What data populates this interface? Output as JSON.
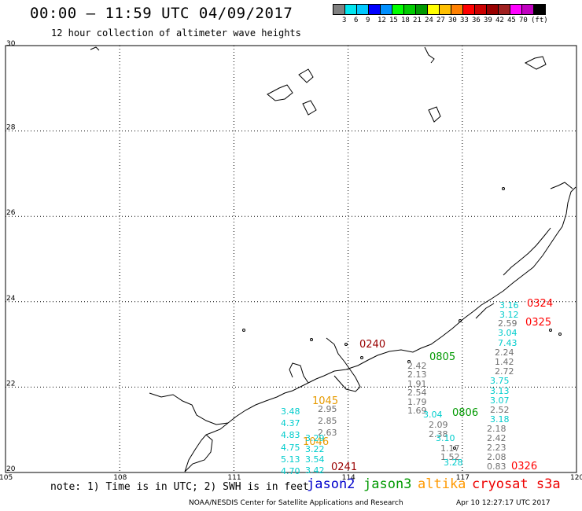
{
  "header": {
    "title": "00:00 — 11:59 UTC 04/09/2017",
    "subtitle": "12 hour collection of altimeter wave heights"
  },
  "legend": {
    "colors": [
      "#808080",
      "#00e5ee",
      "#00c8ff",
      "#0000ff",
      "#0090ff",
      "#00ff00",
      "#00cc00",
      "#009900",
      "#ffff00",
      "#ffc000",
      "#ff8000",
      "#ff0000",
      "#cc0000",
      "#990000",
      "#a02020",
      "#ff00ff",
      "#c000c0",
      "#000000"
    ],
    "labels": [
      "3",
      "6",
      "9",
      "12",
      "15",
      "18",
      "21",
      "24",
      "27",
      "30",
      "33",
      "36",
      "39",
      "42",
      "45",
      "70",
      "(ft)"
    ]
  },
  "axes": {
    "lat_labels": [
      "30",
      "28",
      "26",
      "24",
      "22",
      "20"
    ],
    "lon_labels": [
      "105",
      "108",
      "111",
      "114",
      "117",
      "120"
    ]
  },
  "passes": [
    {
      "label": "0240",
      "color": "#990000"
    },
    {
      "label": "0241",
      "color": "#990000"
    },
    {
      "label": "0324",
      "color": "#ff0000"
    },
    {
      "label": "0325",
      "color": "#ff0000"
    },
    {
      "label": "0326",
      "color": "#ff0000"
    },
    {
      "label": "0805",
      "color": "#009900"
    },
    {
      "label": "0806",
      "color": "#009900"
    },
    {
      "label": "1045",
      "color": "#e69a00"
    },
    {
      "label": "1046",
      "color": "#e69a00"
    }
  ],
  "columns": {
    "c1": {
      "color": "#00cccc",
      "values": [
        "3.48",
        "4.37",
        "4.83",
        "4.75",
        "5.13",
        "4.70"
      ]
    },
    "c2": {
      "color": "#707070",
      "values": [
        "2.95",
        "2.85",
        "2.63"
      ]
    },
    "c3": {
      "color": "#00cccc",
      "values": [
        "3.29",
        "3.22",
        "3.54",
        "3.42"
      ]
    },
    "c4": {
      "color": "#707070",
      "values": [
        "2.42",
        "2.13",
        "1.91",
        "2.54",
        "1.79",
        "1.69"
      ]
    },
    "c5": {
      "color": "#00cccc",
      "values": [
        "3.04"
      ]
    },
    "c6": {
      "color": "#707070",
      "values": [
        "2.09",
        "2.38"
      ]
    },
    "c7": {
      "color": "#00cccc",
      "values": [
        "3.10"
      ]
    },
    "c8": {
      "color": "#707070",
      "values": [
        "1.17",
        "1.52"
      ]
    },
    "c9": {
      "color": "#00cccc",
      "values": [
        "3.28"
      ]
    },
    "c10a": {
      "color": "#00cccc",
      "values": [
        "3.16",
        "3.12"
      ]
    },
    "c10b": {
      "color": "#707070",
      "values": [
        "2.59"
      ]
    },
    "c10c": {
      "color": "#00cccc",
      "values": [
        "3.04",
        "7.43"
      ]
    },
    "c10d": {
      "color": "#707070",
      "values": [
        "2.24",
        "1.42",
        "2.72"
      ]
    },
    "c10e": {
      "color": "#00cccc",
      "values": [
        "3.75",
        "3.13",
        "3.07"
      ]
    },
    "c10f": {
      "color": "#707070",
      "values": [
        "2.52"
      ]
    },
    "c10g": {
      "color": "#00cccc",
      "values": [
        "3.18"
      ]
    },
    "c10h": {
      "color": "#707070",
      "values": [
        "2.18",
        "2.42",
        "2.23",
        "2.08",
        "0.83"
      ]
    }
  },
  "footer": {
    "note": "note: 1) Time is in UTC; 2) SWH is in feet",
    "satellites": [
      {
        "name": "jason2",
        "color": "#0000cc"
      },
      {
        "name": "jason3",
        "color": "#009900"
      },
      {
        "name": "altika",
        "color": "#ff9900"
      },
      {
        "name": "cryosat s3a",
        "color": "#ee0000"
      }
    ],
    "credit": "NOAA/NESDIS Center for Satellite Applications and Research",
    "timestamp": "Apr 10 12:27:17 UTC 2017"
  }
}
